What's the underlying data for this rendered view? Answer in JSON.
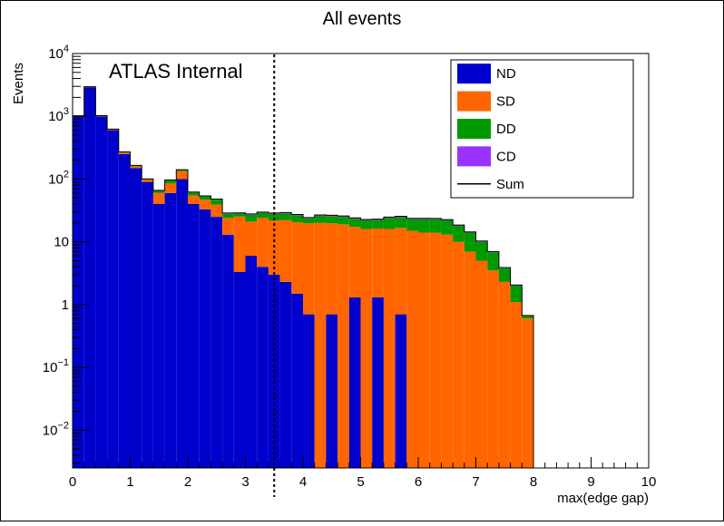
{
  "chart_data": {
    "type": "stacked-histogram",
    "title": "All events",
    "xlabel": "max(edge gap)",
    "ylabel": "Events",
    "y_scale": "log",
    "xlim": [
      0,
      10
    ],
    "ylim": [
      0.0025,
      10000
    ],
    "x_ticks": [
      "0",
      "1",
      "2",
      "3",
      "4",
      "5",
      "6",
      "7",
      "8",
      "9",
      "10"
    ],
    "y_ticks": [
      {
        "value": 0.01,
        "base": "10",
        "exp": "−2"
      },
      {
        "value": 0.1,
        "base": "10",
        "exp": "−1"
      },
      {
        "value": 1,
        "base": "1",
        "exp": ""
      },
      {
        "value": 10,
        "base": "10",
        "exp": ""
      },
      {
        "value": 100,
        "base": "10",
        "exp": "2"
      },
      {
        "value": 1000,
        "base": "10",
        "exp": "3"
      },
      {
        "value": 10000,
        "base": "10",
        "exp": "4"
      }
    ],
    "annotation": "ATLAS Internal",
    "cut_line_x": 3.5,
    "bin_width": 0.2,
    "bin_edges_start": 0,
    "legend_position": "top-right",
    "series": [
      {
        "name": "ND",
        "color": "#0000cc",
        "values": [
          1000,
          2900,
          1000,
          600,
          250,
          150,
          90,
          40,
          60,
          100,
          40,
          33,
          25,
          13,
          3.3,
          6,
          4,
          3,
          2.3,
          1.5,
          0.7,
          0,
          0.7,
          0,
          1.3,
          0,
          1.3,
          0,
          0.7,
          0,
          0,
          0,
          0,
          0,
          0,
          0,
          0,
          0,
          0,
          0,
          0,
          0,
          0,
          0,
          0,
          0,
          0,
          0,
          0,
          0
        ]
      },
      {
        "name": "SD",
        "color": "#ff6600",
        "values": [
          15,
          30,
          15,
          15,
          15,
          10,
          8,
          20,
          25,
          35,
          15,
          14,
          14,
          11,
          22,
          15,
          20,
          19,
          20,
          19,
          19,
          20,
          19,
          19,
          16,
          16,
          15,
          16,
          16,
          15,
          14,
          14,
          13,
          10,
          7,
          5,
          3.5,
          2.3,
          1.1,
          0.6,
          0,
          0,
          0,
          0,
          0,
          0,
          0,
          0,
          0,
          0
        ]
      },
      {
        "name": "DD",
        "color": "#009900",
        "values": [
          5,
          20,
          8,
          8,
          5,
          4,
          2,
          5,
          10,
          5,
          6,
          6,
          8,
          4,
          3,
          6,
          5,
          6,
          6,
          6,
          4,
          6,
          6,
          6,
          6,
          6,
          6,
          8,
          8,
          8,
          9,
          9,
          9,
          8,
          7,
          5,
          3.3,
          1.5,
          0.9,
          0.06,
          0,
          0,
          0,
          0,
          0,
          0,
          0,
          0,
          0,
          0
        ]
      },
      {
        "name": "CD",
        "color": "#9933ff",
        "values": [
          2,
          5,
          2,
          2,
          1,
          1,
          0.6,
          1,
          2,
          1,
          1,
          1,
          1,
          0.8,
          0.6,
          0.8,
          0.8,
          0.8,
          1,
          0.8,
          0.7,
          0.8,
          0.8,
          0.8,
          0.8,
          0.7,
          0.7,
          0.8,
          0.8,
          0.7,
          0.7,
          0.6,
          0.6,
          0.5,
          0.4,
          0.3,
          0.2,
          0.1,
          0.05,
          0.01,
          0,
          0,
          0,
          0,
          0,
          0,
          0,
          0,
          0,
          0
        ]
      }
    ],
    "sum_entry": {
      "name": "Sum",
      "color": "#000000"
    }
  }
}
